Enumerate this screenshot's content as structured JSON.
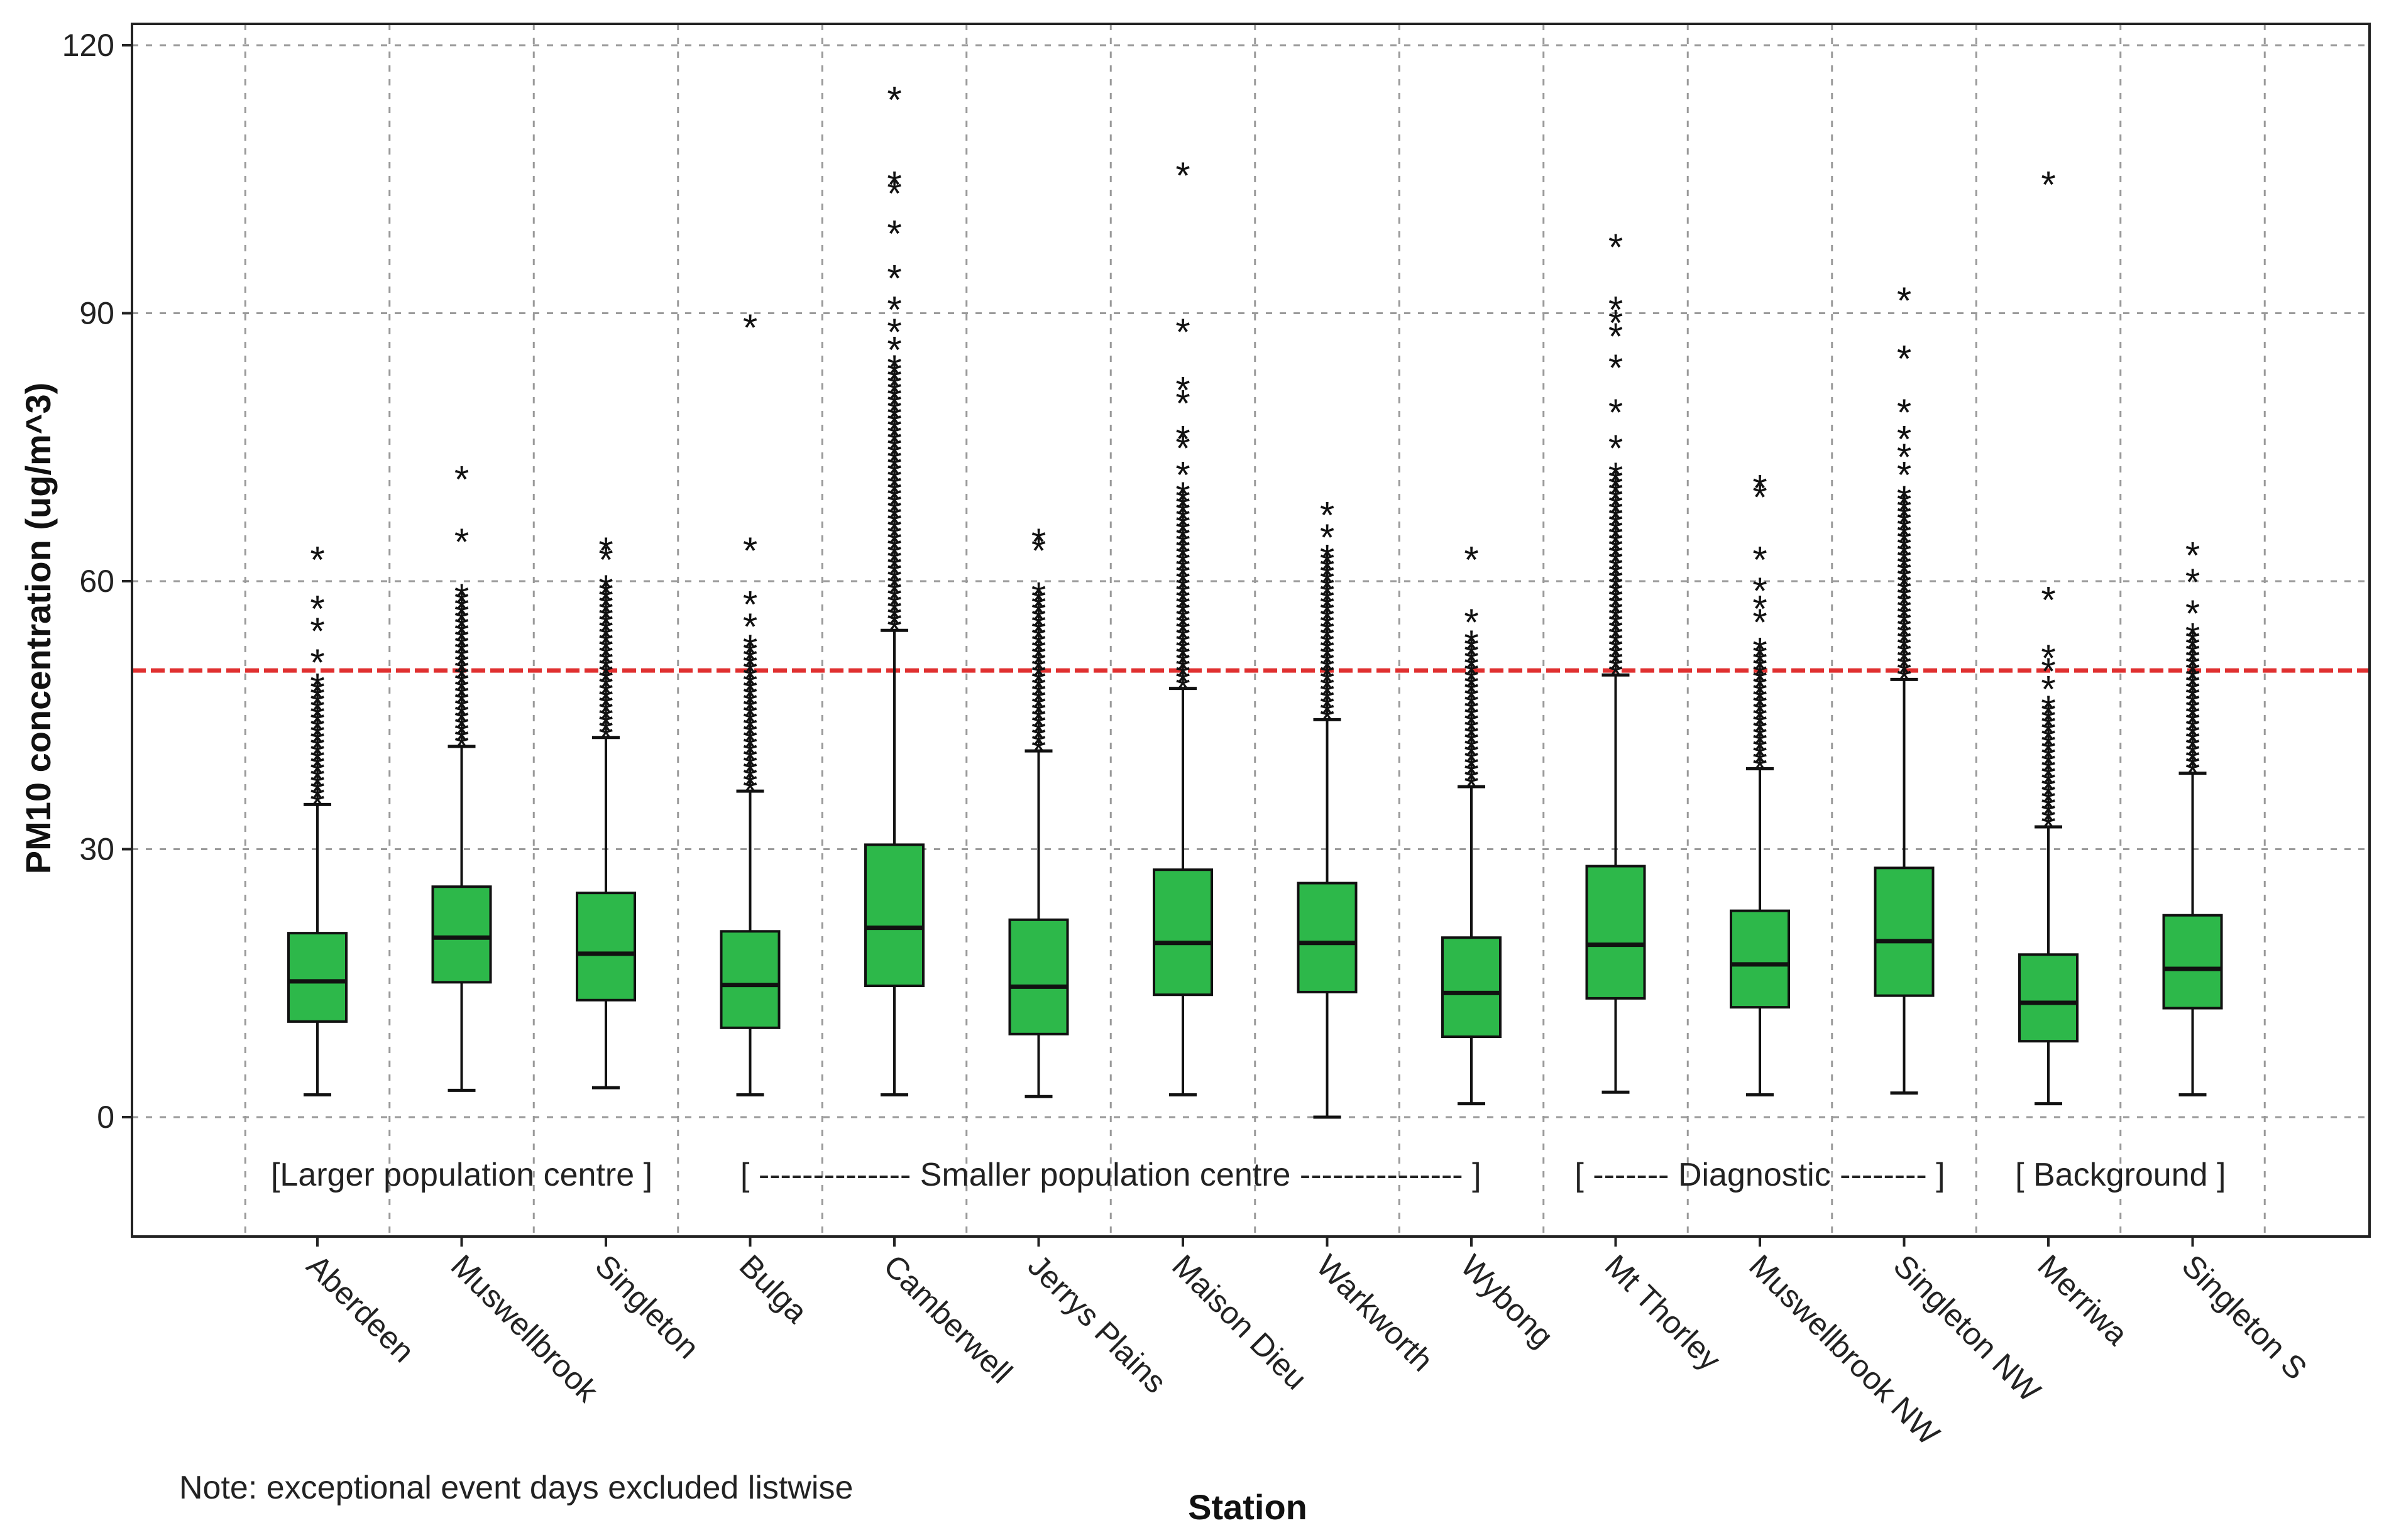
{
  "chart_data": {
    "type": "box",
    "title": "",
    "xlabel": "Station",
    "ylabel": "PM10 concentration (ug/m^3)",
    "ylim": [
      -13,
      122
    ],
    "yticks": [
      0,
      30,
      60,
      90,
      120
    ],
    "grid": true,
    "reference_line": {
      "value": 50,
      "color": "#e03030"
    },
    "colors": {
      "box_fill": "#2db84a",
      "box_stroke": "#111111",
      "grid": "#9a9a9a",
      "frame": "#222222"
    },
    "note": "Note: exceptional event days excluded listwise",
    "groups": [
      {
        "label": "[Larger population centre ]",
        "start": 0,
        "end": 2
      },
      {
        "label": "[ -------------- Smaller population centre --------------- ]",
        "start": 3,
        "end": 8
      },
      {
        "label": "[ ------- Diagnostic -------- ]",
        "start": 9,
        "end": 11
      },
      {
        "label": "[ Background  ]",
        "start": 12,
        "end": 13
      }
    ],
    "outlier_marker": "*",
    "categories": [
      "Aberdeen",
      "Muswellbrook",
      "Singleton",
      "Bulga",
      "Camberwell",
      "Jerrys Plains",
      "Maison Dieu",
      "Warkworth",
      "Wybong",
      "Mt Thorley",
      "Muswellbrook NW",
      "Singleton NW",
      "Merriwa",
      "Singleton S"
    ],
    "boxes": [
      {
        "station": "Aberdeen",
        "min": 2.5,
        "q1": 10.7,
        "median": 15.2,
        "q3": 20.6,
        "max": 35,
        "outlier_band": [
          35,
          48.5
        ],
        "outliers": [
          51,
          54.5,
          57,
          62.5
        ]
      },
      {
        "station": "Muswellbrook",
        "min": 3,
        "q1": 15.1,
        "median": 20.1,
        "q3": 25.8,
        "max": 41.5,
        "outlier_band": [
          41.5,
          59
        ],
        "outliers": [
          64.5,
          71.5
        ]
      },
      {
        "station": "Singleton",
        "min": 3.3,
        "q1": 13.1,
        "median": 18.3,
        "q3": 25.1,
        "max": 42.5,
        "outlier_band": [
          42.5,
          60
        ],
        "outliers": [
          62.5,
          63.5
        ]
      },
      {
        "station": "Bulga",
        "min": 2.5,
        "q1": 10,
        "median": 14.8,
        "q3": 20.8,
        "max": 36.5,
        "outlier_band": [
          36.5,
          53
        ],
        "outliers": [
          55,
          57.5,
          63.5,
          88.5
        ]
      },
      {
        "station": "Camberwell",
        "min": 2.5,
        "q1": 14.7,
        "median": 21.2,
        "q3": 30.5,
        "max": 54.5,
        "outlier_band": [
          54.5,
          84
        ],
        "outliers": [
          86,
          88,
          90.5,
          94,
          99,
          103.5,
          104.5,
          114
        ]
      },
      {
        "station": "Jerrys Plains",
        "min": 2.3,
        "q1": 9.3,
        "median": 14.6,
        "q3": 22.1,
        "max": 41,
        "outlier_band": [
          41,
          59
        ],
        "outliers": [
          63.5,
          64.5
        ]
      },
      {
        "station": "Maison Dieu",
        "min": 2.5,
        "q1": 13.7,
        "median": 19.5,
        "q3": 27.7,
        "max": 48,
        "outlier_band": [
          48,
          70
        ],
        "outliers": [
          72,
          75,
          76,
          80,
          81.5,
          88,
          105.5
        ]
      },
      {
        "station": "Warkworth",
        "min": 0,
        "q1": 14,
        "median": 19.5,
        "q3": 26.2,
        "max": 44.5,
        "outlier_band": [
          44.5,
          63
        ],
        "outliers": [
          65,
          67.5
        ]
      },
      {
        "station": "Wybong",
        "min": 1.5,
        "q1": 9,
        "median": 13.9,
        "q3": 20.1,
        "max": 37,
        "outlier_band": [
          37,
          53.5
        ],
        "outliers": [
          55.5,
          62.5
        ]
      },
      {
        "station": "Mt Thorley",
        "min": 2.8,
        "q1": 13.3,
        "median": 19.3,
        "q3": 28.1,
        "max": 49.5,
        "outlier_band": [
          49.5,
          72
        ],
        "outliers": [
          75,
          79,
          84,
          87.5,
          89,
          90.5,
          97.5
        ]
      },
      {
        "station": "Muswellbrook NW",
        "min": 2.5,
        "q1": 12.3,
        "median": 17.1,
        "q3": 23.1,
        "max": 39,
        "outlier_band": [
          39,
          53
        ],
        "outliers": [
          55.5,
          57,
          59,
          62.5,
          69.5,
          70.5
        ]
      },
      {
        "station": "Singleton NW",
        "min": 2.7,
        "q1": 13.6,
        "median": 19.7,
        "q3": 27.9,
        "max": 49,
        "outlier_band": [
          49,
          70
        ],
        "outliers": [
          72,
          74,
          76,
          79,
          85,
          91.5
        ]
      },
      {
        "station": "Merriwa",
        "min": 1.5,
        "q1": 8.5,
        "median": 12.8,
        "q3": 18.2,
        "max": 32.5,
        "outlier_band": [
          32.5,
          46
        ],
        "outliers": [
          48,
          50,
          51.5,
          58,
          104.5
        ]
      },
      {
        "station": "Singleton S",
        "min": 2.5,
        "q1": 12.2,
        "median": 16.6,
        "q3": 22.6,
        "max": 38.5,
        "outlier_band": [
          38.5,
          54
        ],
        "outliers": [
          56.5,
          60,
          63
        ]
      }
    ]
  }
}
